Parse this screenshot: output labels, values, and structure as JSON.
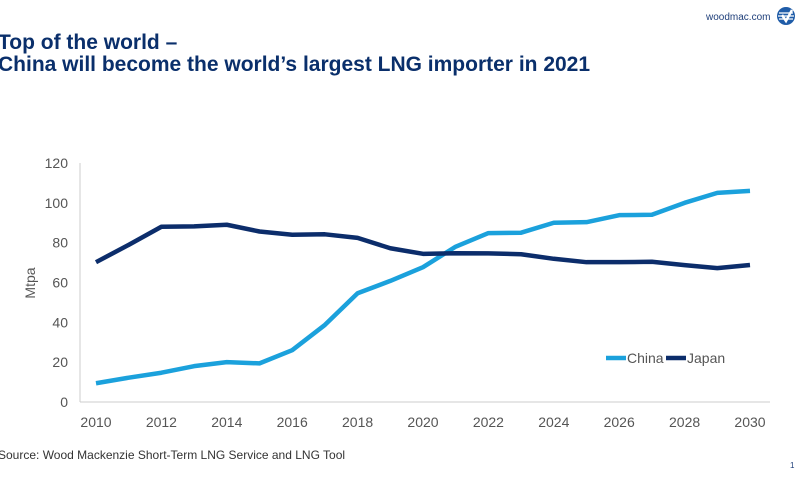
{
  "header": {
    "site": "woodmac.com",
    "logo": "Wood Mackenzie logo"
  },
  "footer": {
    "source": "Source: Wood Mackenzie Short-Term LNG Service and LNG Tool",
    "page": "1"
  },
  "chart_data": {
    "type": "line",
    "title": "Top of the world –",
    "subtitle": "China will become the world’s largest LNG importer in 2021",
    "xlabel": "",
    "ylabel": "Mtpa",
    "x": [
      2010,
      2011,
      2012,
      2013,
      2014,
      2015,
      2016,
      2017,
      2018,
      2019,
      2020,
      2021,
      2022,
      2023,
      2024,
      2025,
      2026,
      2027,
      2028,
      2029,
      2030
    ],
    "xticks": [
      "2010",
      "2012",
      "2014",
      "2016",
      "2018",
      "2020",
      "2022",
      "2024",
      "2026",
      "2028",
      "2030"
    ],
    "yticks": [
      "0",
      "20",
      "40",
      "60",
      "80",
      "100",
      "120"
    ],
    "ylim": [
      0,
      120
    ],
    "grid": false,
    "legend": "bottom-right",
    "series": [
      {
        "name": "China",
        "color": "#1ba1dc",
        "values": [
          9.4,
          12.2,
          14.7,
          18,
          20,
          19.4,
          26,
          38.7,
          54.6,
          60.8,
          67.7,
          78,
          84.8,
          85,
          90,
          90.3,
          93.8,
          94,
          100,
          105,
          106
        ]
      },
      {
        "name": "Japan",
        "color": "#0c2d6b",
        "values": [
          70.2,
          78.9,
          88,
          88.2,
          89,
          85.6,
          84,
          84.2,
          82.4,
          77.2,
          74.4,
          74.7,
          74.6,
          74.2,
          71.9,
          70.2,
          70.2,
          70.4,
          68.7,
          67.2,
          68.8
        ]
      }
    ]
  }
}
